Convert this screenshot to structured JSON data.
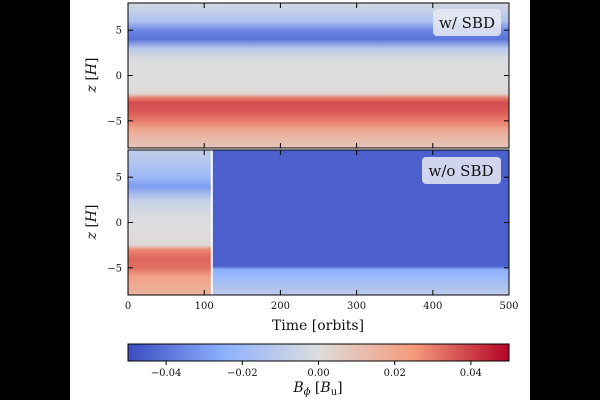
{
  "chart_data": {
    "type": "heatmap",
    "colormap": "coolwarm",
    "panels": [
      {
        "label": "w/ SBD",
        "ylabel": "z [H]",
        "xlim": [
          0,
          500
        ],
        "ylim": [
          -8,
          8
        ],
        "yticks": [
          5,
          0,
          -5
        ],
        "profile_z": [
          8,
          6,
          5,
          4,
          3,
          2,
          1,
          0,
          -1,
          -2,
          -2.5,
          -3,
          -4,
          -5,
          -6,
          -7,
          -8
        ],
        "profile_Bphi": [
          -0.003,
          -0.015,
          -0.035,
          -0.04,
          -0.012,
          -0.002,
          0,
          0,
          0,
          0.002,
          0.03,
          0.038,
          0.036,
          0.03,
          0.02,
          0.013,
          0.009
        ]
      },
      {
        "label": "w/o SBD",
        "ylabel": "z [H]",
        "xlim": [
          0,
          500
        ],
        "ylim": [
          -8,
          8
        ],
        "yticks": [
          5,
          0,
          -5
        ],
        "xticks": [
          0,
          100,
          200,
          300,
          400,
          500
        ],
        "breakup_time": 110,
        "early_profile_z": [
          8,
          5,
          4,
          2.5,
          1,
          0,
          -1,
          -2.5,
          -3,
          -4,
          -5,
          -6,
          -8
        ],
        "early_profile_Bphi": [
          -0.008,
          -0.02,
          -0.03,
          -0.008,
          -0.002,
          0,
          0,
          0.002,
          0.028,
          0.034,
          0.032,
          0.022,
          0.016
        ],
        "late_profile_z": [
          8,
          -4.8,
          -5.2,
          -8
        ],
        "late_profile_Bphi": [
          -0.045,
          -0.045,
          -0.025,
          -0.01
        ]
      }
    ],
    "xlabel": "Time [orbits]",
    "colorbar": {
      "label": "B_φ [B_u]",
      "vmin": -0.05,
      "vmax": 0.05,
      "ticks": [
        -0.04,
        -0.02,
        0.0,
        0.02,
        0.04
      ],
      "tick_labels": [
        "−0.04",
        "−0.02",
        "0.00",
        "0.02",
        "0.04"
      ]
    }
  }
}
